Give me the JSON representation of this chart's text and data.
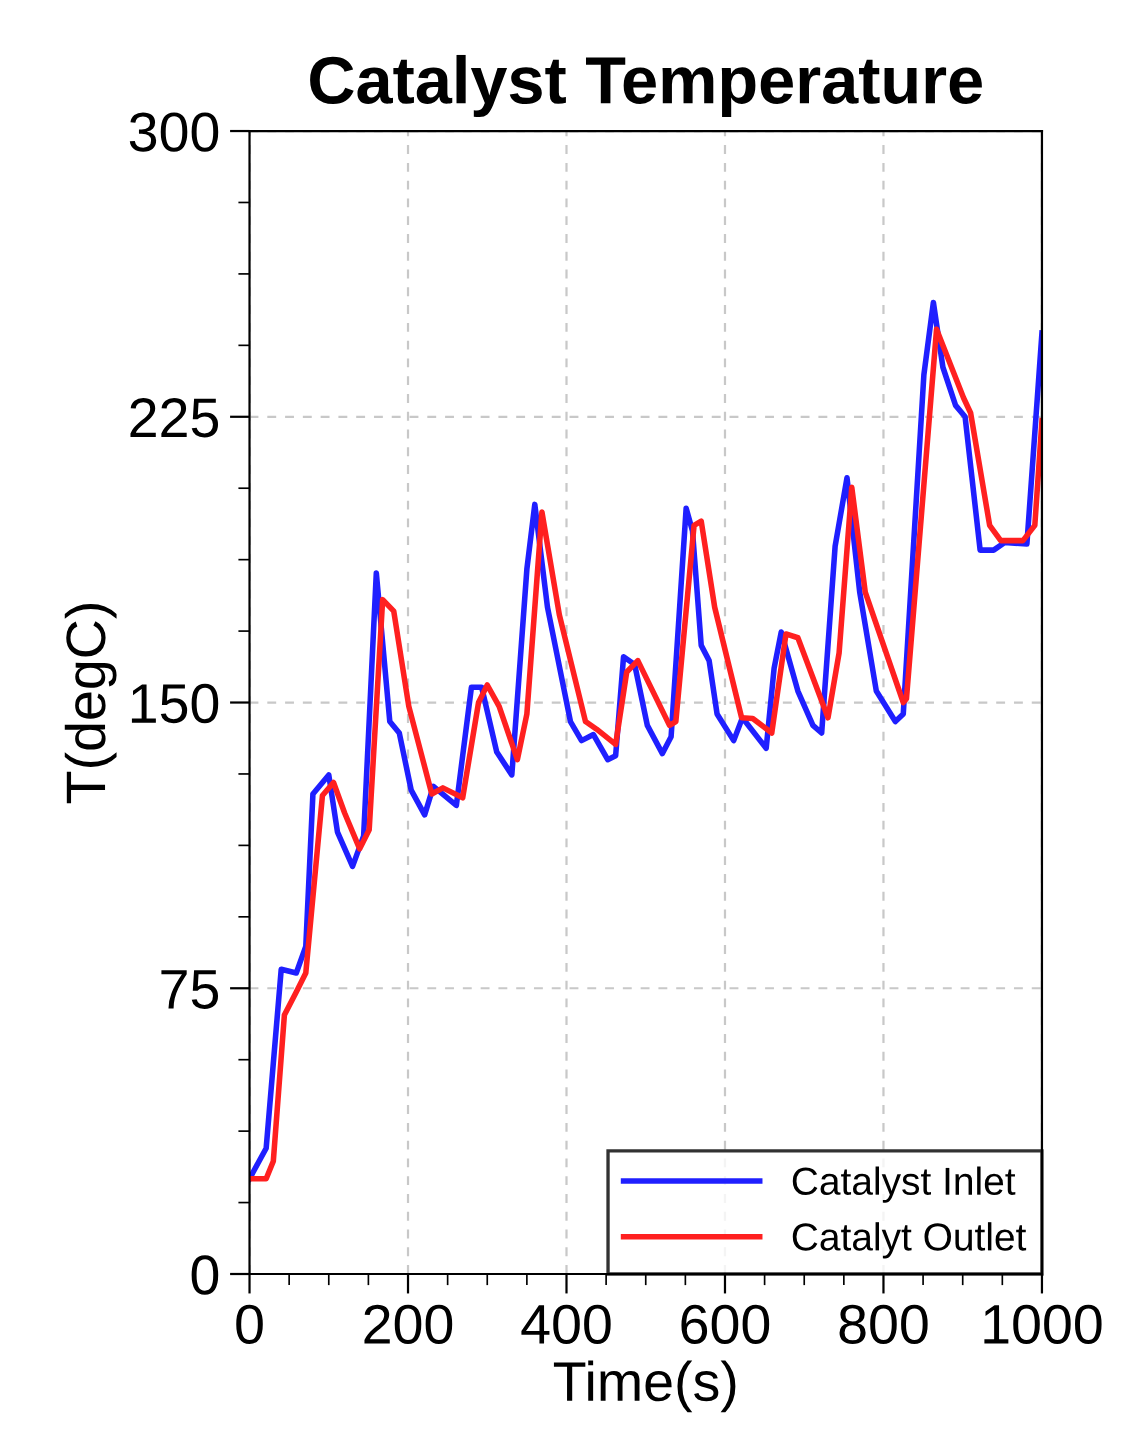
{
  "chart_data": {
    "type": "line",
    "title": "Catalyst Temperature",
    "xlabel": "Time(s)",
    "ylabel": "T(degC)",
    "xlim": [
      0,
      1000
    ],
    "xticks": [
      0,
      200,
      400,
      600,
      800,
      1000
    ],
    "ylim": [
      0,
      300
    ],
    "yticks": [
      0,
      75,
      150,
      225,
      300
    ],
    "grid": true,
    "legend": "bottom right",
    "line_style": "solid",
    "marker": "none",
    "series": [
      {
        "name": "Catalyst Inlet",
        "color": "#1f1fff",
        "x": [
          0,
          21,
          40,
          59,
          71,
          80,
          100,
          111,
          130,
          144,
          160,
          177,
          189,
          204,
          221,
          232,
          261,
          280,
          293,
          312,
          331,
          350,
          360,
          376,
          405,
          419,
          434,
          452,
          462,
          472,
          486,
          502,
          521,
          532,
          551,
          559,
          570,
          580,
          590,
          611,
          622,
          652,
          662,
          671,
          692,
          711,
          722,
          739,
          754,
          770,
          791,
          815,
          825,
          851,
          863,
          875,
          891,
          903,
          922,
          939,
          953,
          981,
          1000
        ],
        "values": [
          25,
          33,
          80,
          79,
          86,
          126,
          131,
          116,
          107,
          115,
          184,
          145,
          142,
          127,
          120.5,
          128,
          123,
          154,
          154,
          137,
          131,
          185,
          202,
          175,
          145,
          140,
          141.6,
          135,
          136,
          162,
          160,
          144,
          136.6,
          141,
          201,
          195,
          165,
          161,
          147,
          140,
          146,
          138,
          159,
          168.5,
          153,
          144,
          142,
          191,
          209,
          179,
          153,
          145,
          147,
          236,
          255,
          238,
          228,
          225,
          190,
          190,
          192,
          191.6,
          247
        ]
      },
      {
        "name": "Catalyt Outlet",
        "color": "#ff2020",
        "x": [
          0,
          21,
          30,
          44,
          59,
          71,
          92,
          106,
          120,
          139,
          151,
          168,
          182,
          201,
          230,
          244,
          269,
          289,
          300,
          315,
          338,
          350,
          369,
          391,
          424,
          438,
          462,
          476,
          490,
          530,
          538,
          561,
          570,
          587,
          621,
          635,
          659,
          677,
          692,
          730,
          744,
          760,
          777,
          825,
          829,
          867,
          901,
          910,
          934,
          948,
          976,
          991,
          1000
        ],
        "values": [
          25,
          25,
          29.6,
          68,
          74,
          79,
          125.6,
          129,
          121,
          111.6,
          116.6,
          177,
          174,
          149,
          126,
          127.6,
          125,
          150,
          154.6,
          149,
          135,
          147,
          200,
          173,
          145,
          143,
          139,
          158,
          161,
          144,
          145,
          196.5,
          197.6,
          175,
          146,
          145.8,
          142,
          168,
          167,
          146,
          163,
          206.5,
          179,
          150,
          151,
          248,
          230,
          226,
          196.5,
          192.5,
          192.5,
          196.5,
          224
        ]
      }
    ]
  }
}
